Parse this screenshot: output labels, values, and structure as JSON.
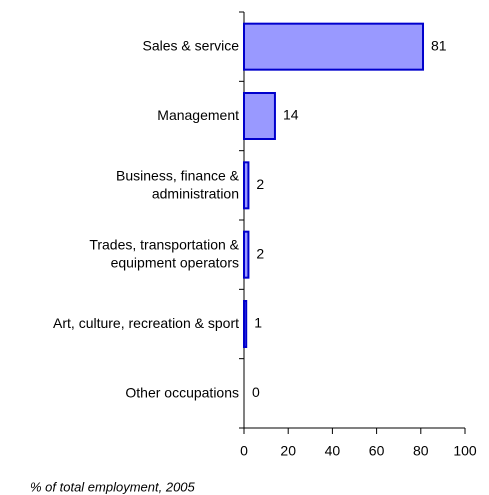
{
  "chart_data": {
    "type": "bar",
    "orientation": "horizontal",
    "categories": [
      "Sales & service",
      "Management",
      "Business, finance &\nadministration",
      "Trades, transportation &\nequipment operators",
      "Art, culture, recreation & sport",
      "Other occupations"
    ],
    "values": [
      81,
      14,
      2,
      2,
      1,
      0
    ],
    "color": "#9999ff",
    "edge_color": "#0000cc",
    "xlim": [
      0,
      100
    ],
    "xticks": [
      0,
      20,
      40,
      60,
      80,
      100
    ],
    "note": "% of total employment, 2005"
  }
}
